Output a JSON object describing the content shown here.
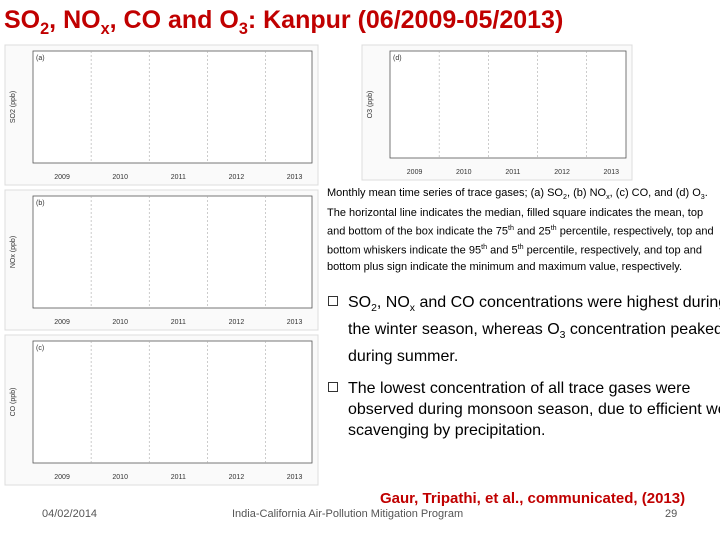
{
  "title": {
    "parts": [
      "SO",
      {
        "sub": "2"
      },
      ", NO",
      {
        "sub": "x"
      },
      ", CO and O",
      {
        "sub": "3"
      },
      ": Kanpur (06/2009-05/2013)"
    ]
  },
  "panels": [
    {
      "label": "(a)",
      "y_label": "SO2 (ppb)",
      "years": [
        "2009",
        "2010",
        "2011",
        "2012",
        "2013"
      ]
    },
    {
      "label": "(b)",
      "y_label": "NOx (ppb)",
      "years": [
        "2009",
        "2010",
        "2011",
        "2012",
        "2013"
      ]
    },
    {
      "label": "(c)",
      "y_label": "CO (ppb)",
      "years": [
        "2009",
        "2010",
        "2011",
        "2012",
        "2013"
      ]
    },
    {
      "label": "(d)",
      "y_label": "O3 (ppb)",
      "years": [
        "2009",
        "2010",
        "2011",
        "2012",
        "2013"
      ]
    }
  ],
  "caption": {
    "parts": [
      "Monthly mean time series of trace gases; (a) SO",
      {
        "sub": "2"
      },
      ", (b) NO",
      {
        "sub": "x"
      },
      ", (c) CO, and (d) O",
      {
        "sub": "3"
      },
      ". The horizontal line indicates the median, filled square indicates the mean, top and bottom of the box indicate the 75",
      {
        "sup": "th"
      },
      " and 25",
      {
        "sup": "th"
      },
      " percentile, respectively, top and bottom whiskers indicate the 95",
      {
        "sup": "th"
      },
      " and 5",
      {
        "sup": "th"
      },
      " percentile, respectively, and top and bottom plus sign indicate the minimum and maximum value, respectively."
    ]
  },
  "bullets": [
    {
      "parts": [
        "SO",
        {
          "sub": "2"
        },
        ", NO",
        {
          "sub": "x"
        },
        " and CO concentrations were highest during the winter season, whereas O",
        {
          "sub": "3"
        },
        " concentration peaked during summer."
      ]
    },
    {
      "parts": [
        "The lowest concentration of all trace gases were observed during monsoon season, due to efficient wet scavenging by precipitation."
      ]
    }
  ],
  "citation": "Gaur, Tripathi, et al., communicated, (2013)",
  "footer": {
    "date": "04/02/2014",
    "program": "India-California Air-Pollution Mitigation Program",
    "page": "29"
  }
}
